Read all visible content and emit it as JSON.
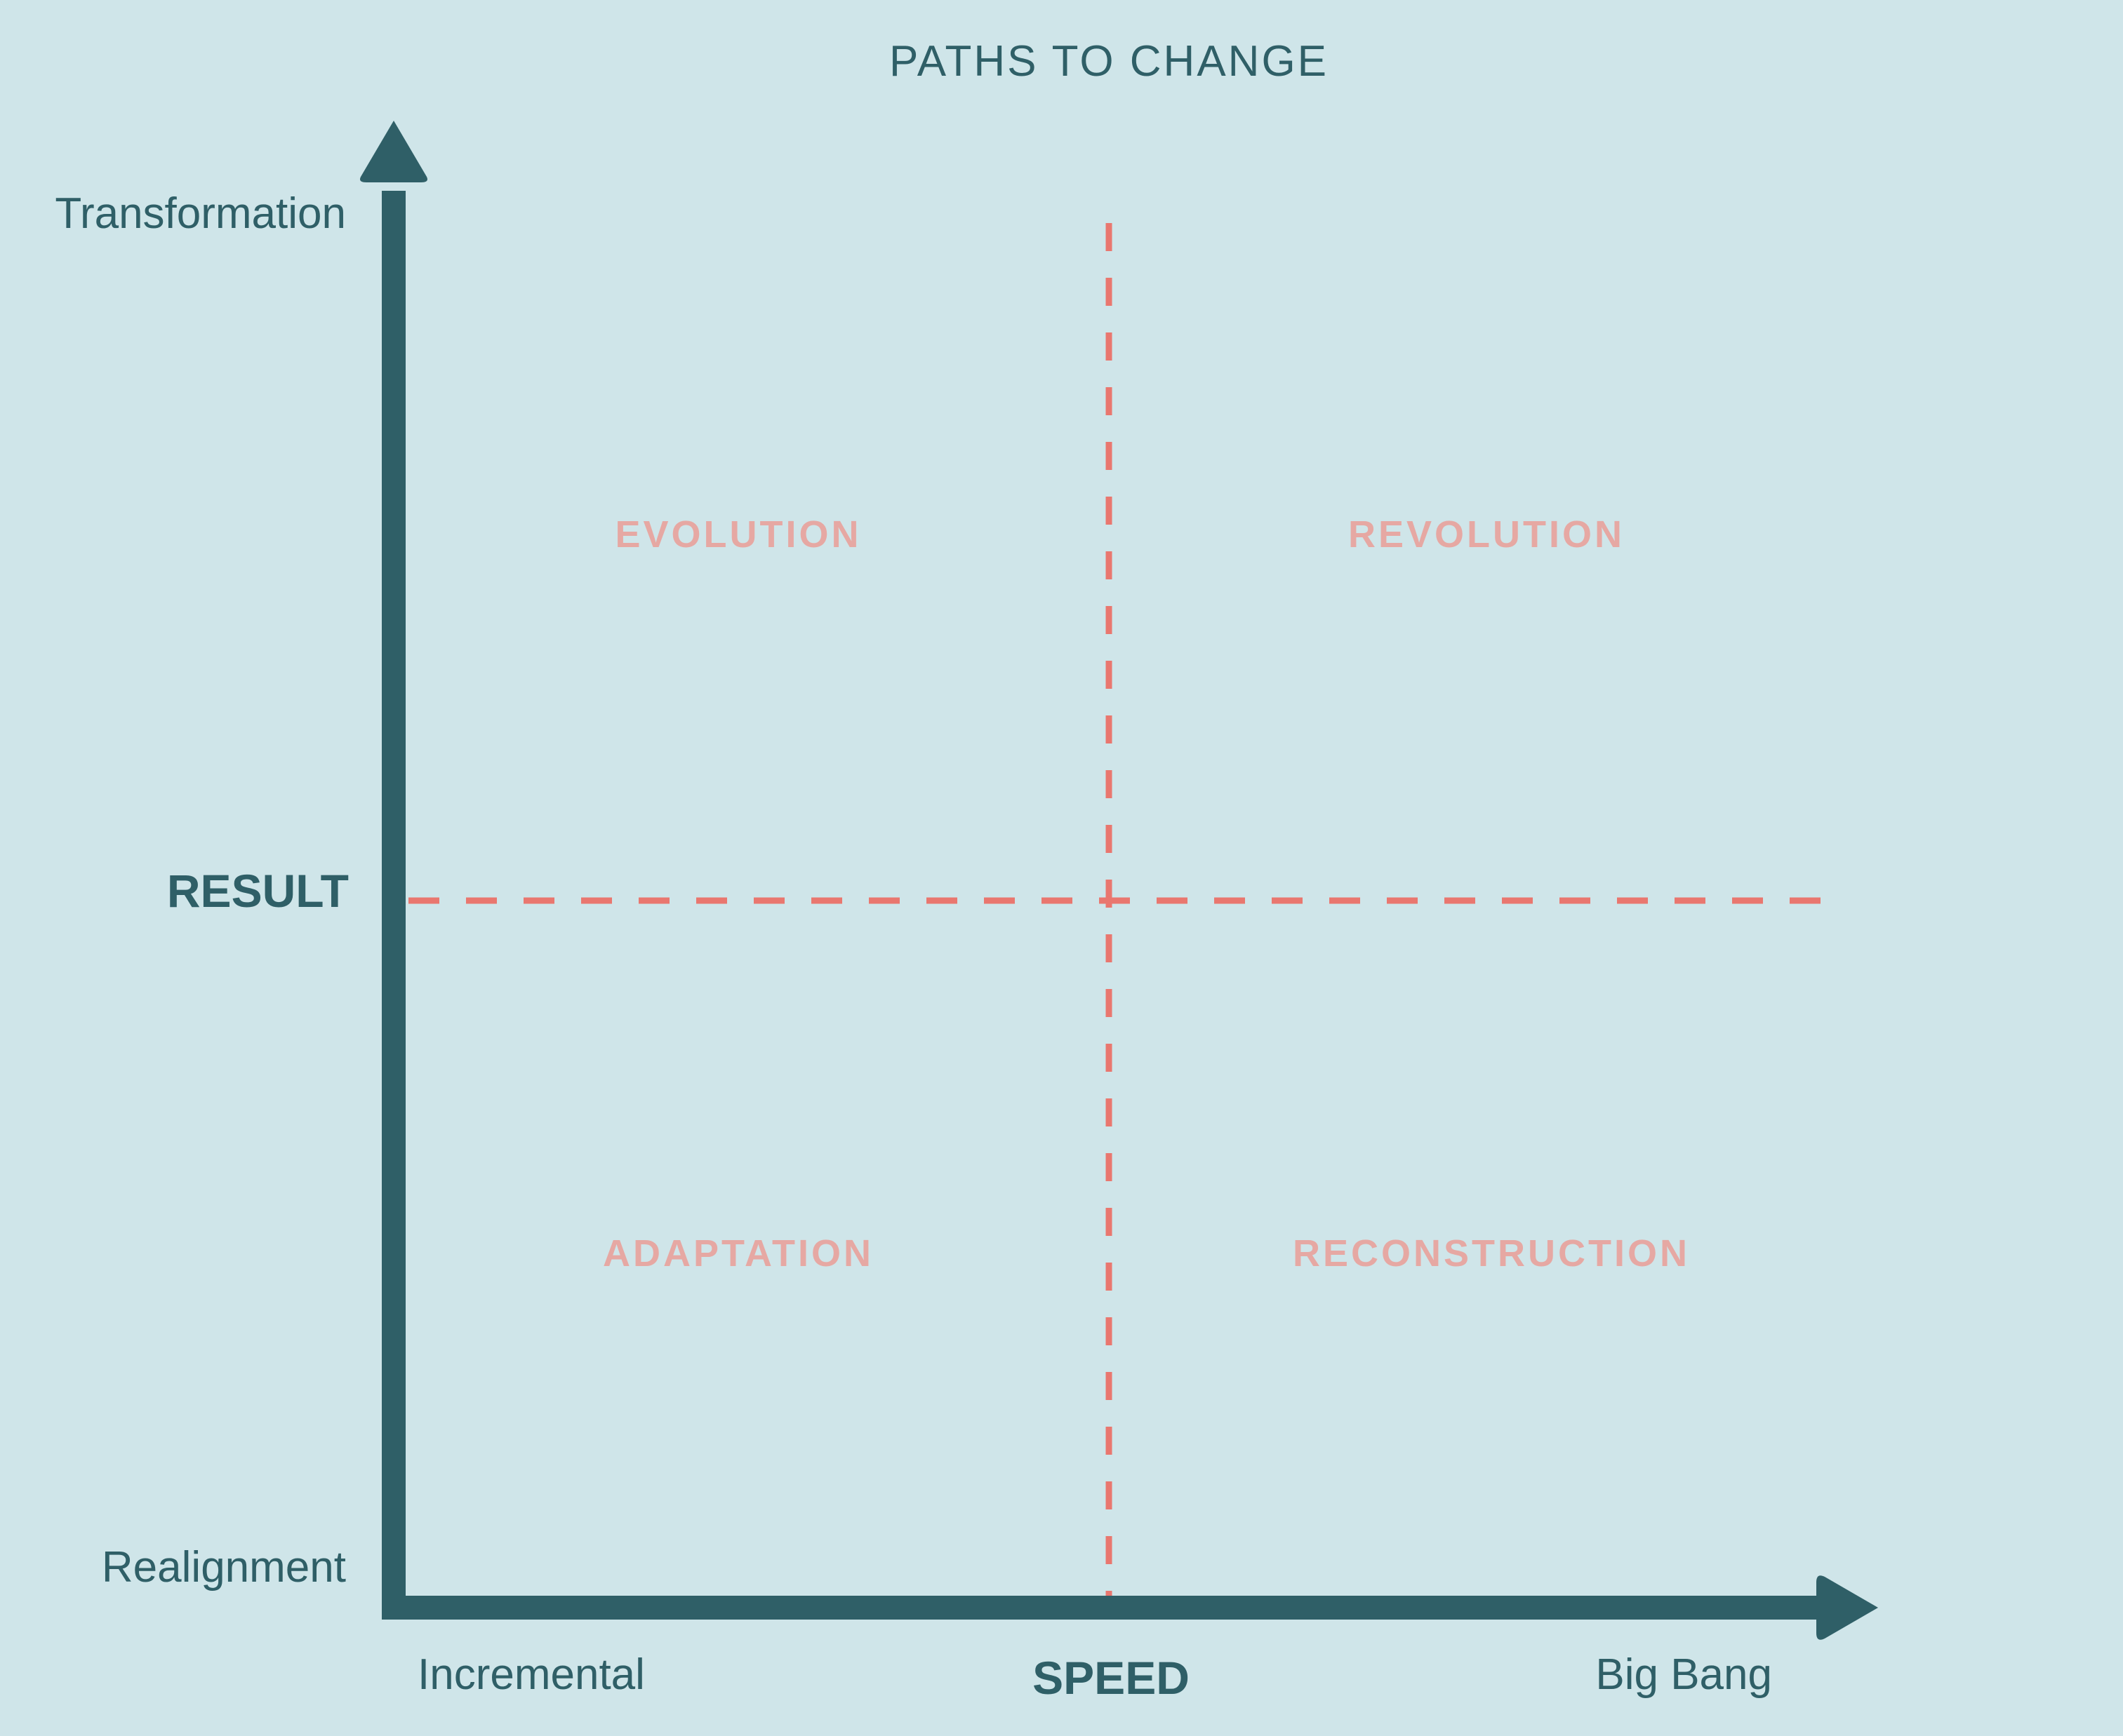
{
  "title": "PATHS TO CHANGE",
  "y_axis": {
    "label": "RESULT",
    "top": "Transformation",
    "bottom": "Realignment"
  },
  "x_axis": {
    "label": "SPEED",
    "left": "Incremental",
    "right": "Big Bang"
  },
  "quadrants": {
    "top_left": "EVOLUTION",
    "top_right": "REVOLUTION",
    "bottom_left": "ADAPTATION",
    "bottom_right": "RECONSTRUCTION"
  },
  "colors": {
    "background": "#cfe5e9",
    "axis": "#2f5f67",
    "divider": "#e9776f",
    "quadrant_text": "#e6a8a3"
  }
}
